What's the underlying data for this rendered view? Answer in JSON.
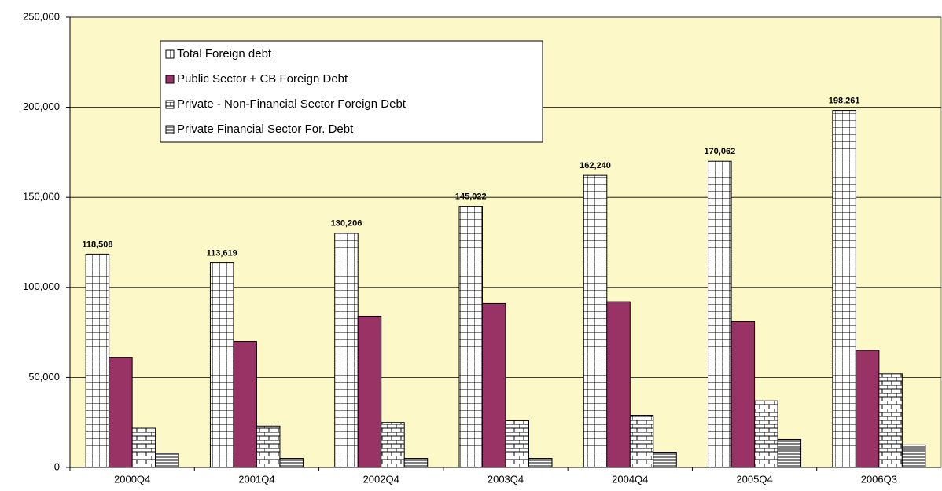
{
  "chart_data": {
    "type": "bar",
    "categories": [
      "2000Q4",
      "2001Q4",
      "2002Q4",
      "2003Q4",
      "2004Q4",
      "2005Q4",
      "2006Q3"
    ],
    "series": [
      {
        "name": "Total Foreign debt",
        "color": "#ffffff",
        "values": [
          118508,
          113619,
          130206,
          145022,
          162240,
          170062,
          198261
        ],
        "value_labels": [
          "118,508",
          "113,619",
          "130,206",
          "145,022",
          "162,240",
          "170,062",
          "198,261"
        ]
      },
      {
        "name": "Public Sector + CB Foreign Debt",
        "color": "#993366",
        "values": [
          61000,
          70000,
          84000,
          91000,
          92000,
          81000,
          65000
        ]
      },
      {
        "name": "Private - Non-Financial Sector Foreign Debt",
        "color": "#ffffff",
        "values": [
          21800,
          23000,
          25000,
          26000,
          29000,
          37000,
          52000
        ]
      },
      {
        "name": "Private Financial Sector For. Debt",
        "color": "#ffffff",
        "values": [
          8000,
          5000,
          5000,
          5000,
          8500,
          15500,
          12500
        ]
      }
    ],
    "ylim": [
      0,
      250000
    ],
    "yticks": [
      0,
      {
        "value": 50000,
        "label": "50,000"
      },
      {
        "value": 100000,
        "label": "100,000"
      },
      {
        "value": 150000,
        "label": "150,000"
      },
      {
        "value": 200000,
        "label": "200,000"
      },
      {
        "value": 250000,
        "label": "250,000"
      }
    ],
    "grid": true,
    "background": "#fcf8c8"
  }
}
